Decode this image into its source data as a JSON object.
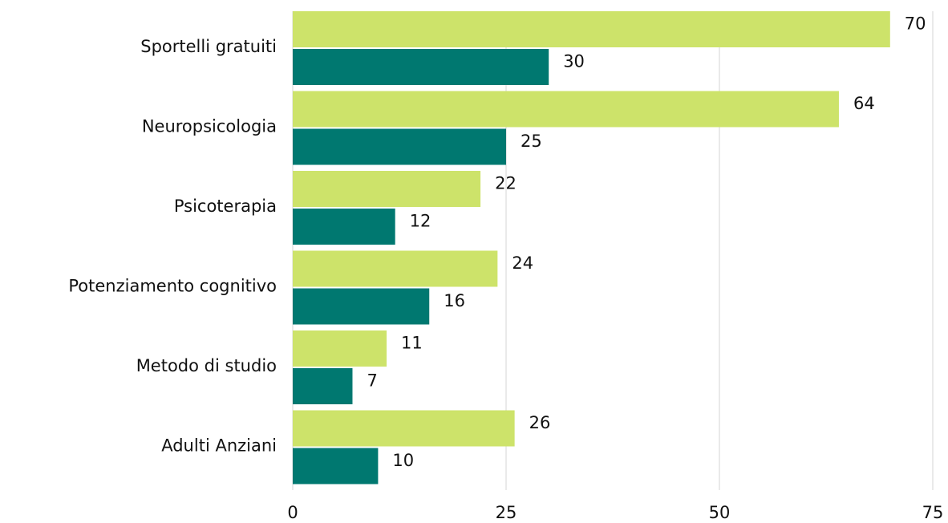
{
  "chart_data": {
    "type": "bar",
    "orientation": "horizontal",
    "categories": [
      "Sportelli gratuiti",
      "Neuropsicologia",
      "Psicoterapia",
      "Potenziamento cognitivo",
      "Metodo di studio",
      "Adulti Anziani"
    ],
    "series": [
      {
        "color": "#cde36a",
        "values": [
          70,
          64,
          22,
          24,
          11,
          26
        ]
      },
      {
        "color": "#007870",
        "values": [
          30,
          25,
          12,
          16,
          7,
          10
        ]
      }
    ],
    "xlim": [
      0,
      75
    ],
    "xticks": [
      0,
      25,
      50,
      75
    ],
    "grid": true
  }
}
